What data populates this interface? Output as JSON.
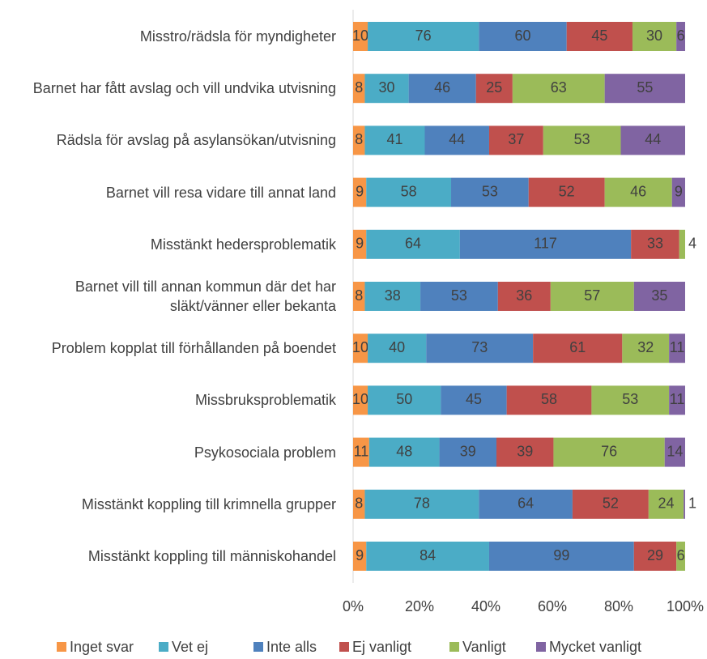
{
  "chart_data": {
    "type": "stacked_bar_100_horizontal",
    "categories": [
      "Misstro/rädsla för myndigheter",
      "Barnet har fått avslag och vill undvika utvisning",
      "Rädsla för avslag på asylansökan/utvisning",
      "Barnet vill resa vidare till annat land",
      "Misstänkt hedersproblematik",
      "Barnet vill till annan kommun där det har släkt/vänner eller bekanta",
      "Problem kopplat till förhållanden på boendet",
      "Missbruksproblematik",
      "Psykosociala problem",
      "Misstänkt koppling till krimnella grupper",
      "Misstänkt koppling till människohandel"
    ],
    "series": [
      {
        "name": "Inget svar",
        "color": "#f79646",
        "values": [
          10,
          8,
          8,
          9,
          9,
          8,
          10,
          10,
          11,
          8,
          9
        ]
      },
      {
        "name": "Vet ej",
        "color": "#4bacc6",
        "values": [
          76,
          30,
          41,
          58,
          64,
          38,
          40,
          50,
          48,
          78,
          84
        ]
      },
      {
        "name": "Inte alls",
        "color": "#4f81bd",
        "values": [
          60,
          46,
          44,
          53,
          117,
          53,
          73,
          45,
          39,
          64,
          99
        ]
      },
      {
        "name": "Ej vanligt",
        "color": "#c0504d",
        "values": [
          45,
          25,
          37,
          52,
          33,
          36,
          61,
          58,
          39,
          52,
          29
        ]
      },
      {
        "name": "Vanligt",
        "color": "#9bbb59",
        "values": [
          30,
          63,
          53,
          46,
          4,
          57,
          32,
          53,
          76,
          24,
          6
        ]
      },
      {
        "name": "Mycket vanligt",
        "color": "#8064a2",
        "values": [
          6,
          55,
          44,
          9,
          null,
          35,
          11,
          11,
          14,
          1,
          null
        ]
      }
    ],
    "xlim": [
      0,
      100
    ],
    "xticks": [
      {
        "value": 0,
        "label": "0%"
      },
      {
        "value": 20,
        "label": "20%"
      },
      {
        "value": 40,
        "label": "40%"
      },
      {
        "value": 60,
        "label": "60%"
      },
      {
        "value": 80,
        "label": "80%"
      },
      {
        "value": 100,
        "label": "100%"
      }
    ],
    "grid": false,
    "legend": "bottom"
  }
}
